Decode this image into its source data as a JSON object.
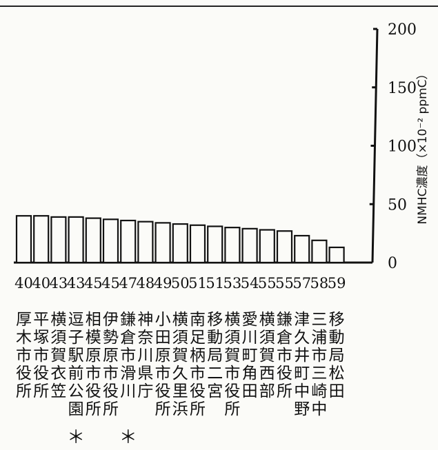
{
  "chart_data": {
    "type": "bar",
    "ylabel": "NMHC濃度（×10⁻² ppmC）",
    "ylim": [
      0,
      200
    ],
    "yticks": [
      0,
      50,
      100,
      150,
      200
    ],
    "x_code_labels": [
      "40",
      "40",
      "43",
      "43",
      "45",
      "45",
      "47",
      "48",
      "49",
      "50",
      "51",
      "51",
      "53",
      "54",
      "55",
      "55",
      "57",
      "58",
      "59"
    ],
    "values": [
      40,
      40,
      39,
      39,
      38,
      37,
      36,
      35,
      34,
      33,
      32,
      31,
      30,
      29,
      28,
      27,
      23,
      19,
      13
    ],
    "categories": [
      [
        "厚",
        "木",
        "市",
        "役",
        "所"
      ],
      [
        "平",
        "塚",
        "市",
        "役",
        "所"
      ],
      [
        "横",
        "須",
        "賀",
        "衣",
        "笠"
      ],
      [
        "逗",
        "子",
        "駅",
        "前",
        "公",
        "園"
      ],
      [
        "相",
        "模",
        "原",
        "市",
        "役",
        "所"
      ],
      [
        "伊",
        "勢",
        "原",
        "市",
        "役",
        "所"
      ],
      [
        "鎌",
        "倉",
        "市",
        "滑",
        "川"
      ],
      [
        "神",
        "奈",
        "川",
        "県",
        "庁"
      ],
      [
        "小",
        "田",
        "原",
        "市",
        "役",
        "所"
      ],
      [
        "横",
        "須",
        "賀",
        "久",
        "里",
        "浜"
      ],
      [
        "南",
        "足",
        "柄",
        "市",
        "役",
        "所"
      ],
      [
        "移",
        "動",
        "局",
        "二",
        "宮"
      ],
      [
        "横",
        "須",
        "賀",
        "市",
        "役",
        "所"
      ],
      [
        "愛",
        "川",
        "町",
        "角",
        "田"
      ],
      [
        "横",
        "須",
        "賀",
        "西",
        "部"
      ],
      [
        "鎌",
        "倉",
        "市",
        "役",
        "所"
      ],
      [
        "津",
        "久",
        "井",
        "町",
        "中",
        "野"
      ],
      [
        "三",
        "浦",
        "市",
        "三",
        "崎",
        "中"
      ],
      [
        "移",
        "動",
        "局",
        "松",
        "田"
      ]
    ],
    "asterisk_mark": "＊",
    "asterisk_under": [
      3,
      6
    ]
  }
}
